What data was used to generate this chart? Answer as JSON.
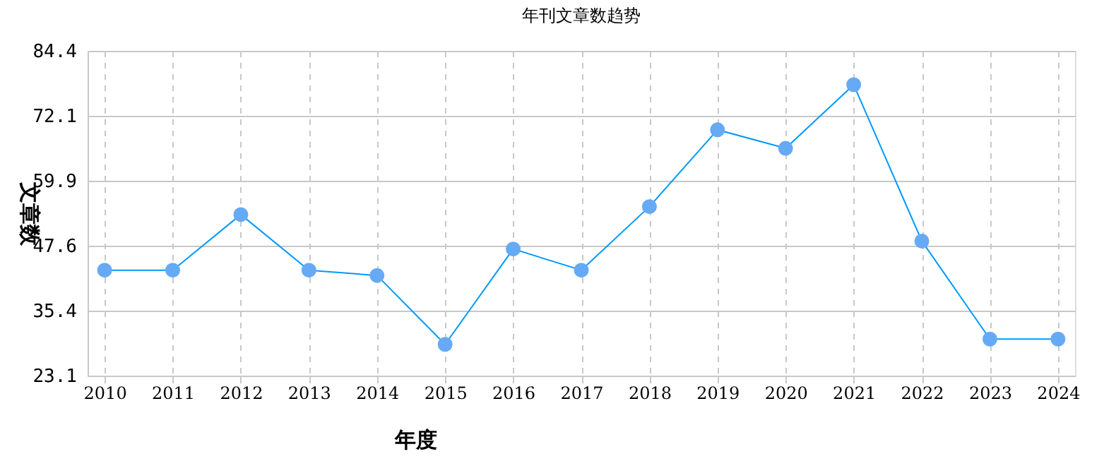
{
  "chart_data": {
    "type": "line",
    "title": "年刊文章数趋势",
    "xlabel": "年度",
    "ylabel": "文章数",
    "categories": [
      "2010",
      "2011",
      "2012",
      "2013",
      "2014",
      "2015",
      "2016",
      "2017",
      "2018",
      "2019",
      "2020",
      "2021",
      "2022",
      "2023",
      "2024"
    ],
    "series": [
      {
        "color": "#0099ff",
        "values": [
          43,
          43,
          53.5,
          43,
          42,
          29,
          47,
          43,
          55,
          69.5,
          66,
          78,
          48.5,
          30,
          30
        ]
      }
    ],
    "ylim": [
      23.1,
      84.4
    ],
    "yticks": [
      23.1,
      35.4,
      47.6,
      59.9,
      72.1,
      84.4
    ],
    "grid": true,
    "marker": "circle",
    "line_style": "solid"
  }
}
